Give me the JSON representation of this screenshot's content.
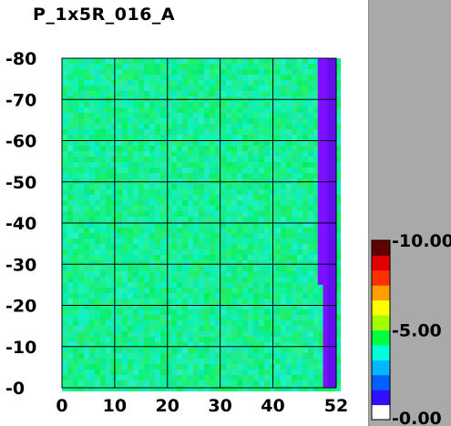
{
  "window": {
    "title": "P_1x5R_016_A"
  },
  "colors": {
    "background": "#ffffff",
    "side_panel": "#a9a9a9",
    "grid": "#000000",
    "field_base": "#10ea70",
    "field_alt": "#1cf0a6",
    "edge_band": "#7d10ff",
    "edge_band_dark": "#5010e0"
  },
  "chart_data": {
    "type": "heatmap",
    "title": "P_1x5R_016_A",
    "xlabel": "",
    "ylabel": "",
    "x_ticks": [
      "0",
      "10",
      "20",
      "30",
      "40",
      "52"
    ],
    "x_tick_values": [
      0,
      10,
      20,
      30,
      40,
      52
    ],
    "y_ticks": [
      "-0",
      "-10",
      "-20",
      "-30",
      "-40",
      "-50",
      "-60",
      "-70",
      "-80"
    ],
    "y_tick_values": [
      0,
      10,
      20,
      30,
      40,
      50,
      60,
      70,
      80
    ],
    "xlim": [
      0,
      52
    ],
    "ylim": [
      0,
      80
    ],
    "grid": true,
    "field_value_range": [
      4.5,
      6.0
    ],
    "edge_band": {
      "x_start_upper": 48.5,
      "x_start_lower": 49.5,
      "y_step": 25,
      "value": 0.3
    },
    "colorbar": {
      "ticks": [
        "-10.00",
        "-5.00",
        "-0.00"
      ],
      "tick_values": [
        10,
        5,
        0
      ],
      "range": [
        0,
        10
      ],
      "stops": [
        "#ffffff",
        "#3010ff",
        "#0060ff",
        "#00b8ff",
        "#00ffd8",
        "#00ff40",
        "#a0ff00",
        "#ffff00",
        "#ffa000",
        "#ff3000",
        "#e00000",
        "#600000"
      ]
    }
  }
}
